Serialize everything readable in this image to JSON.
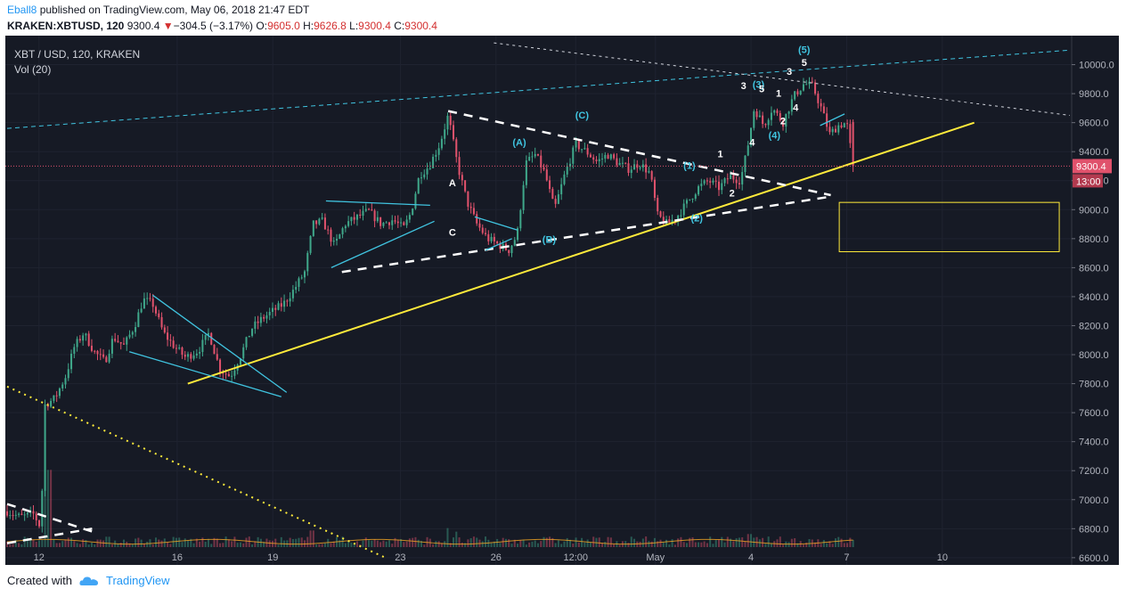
{
  "header": {
    "author": "Eball8",
    "published": "published on TradingView.com, May 06, 2018 21:47 EDT",
    "symbol": "KRAKEN:XBTUSD, 120",
    "last": "9300.4",
    "change_arrow": "▼",
    "change": "−304.5 (−3.17%)",
    "o_label": "O:",
    "o_value": "9605.0",
    "h_label": "H:",
    "h_value": "9626.8",
    "l_label": "L:",
    "l_value": "9300.4",
    "c_label": "C:",
    "c_value": "9300.4"
  },
  "legend": {
    "title": "XBT / USD, 120, KRAKEN",
    "volume": "Vol (20)"
  },
  "footer": {
    "created_with": "Created with",
    "brand": "TradingView"
  },
  "colors": {
    "background": "#161a25",
    "up": "#3fa78a",
    "down": "#e0526c",
    "trend_yellow": "#ffeb3b",
    "wave_cyan": "#40c4e0",
    "white_dash": "#ffffff",
    "price_line": "#e0526c",
    "axis_text": "#b2b5be"
  },
  "chart_data": {
    "type": "candlestick",
    "title": "XBT / USD, 120, KRAKEN",
    "xlabel": "",
    "ylabel": "",
    "ylim": [
      6550,
      10200
    ],
    "y_ticks": [
      "6600.0",
      "6800.0",
      "7000.0",
      "7200.0",
      "7400.0",
      "7600.0",
      "7800.0",
      "8000.0",
      "8200.0",
      "8400.0",
      "8600.0",
      "8800.0",
      "9000.0",
      "9200.0",
      "9400.0",
      "9600.0",
      "9800.0",
      "10000.0"
    ],
    "x_tick_labels": [
      "12",
      "16",
      "19",
      "23",
      "26",
      "12:00",
      "May",
      "4",
      "7",
      "10"
    ],
    "x_ticks": [
      {
        "label": "12",
        "t": 3
      },
      {
        "label": "16",
        "t": 16
      },
      {
        "label": "19",
        "t": 25
      },
      {
        "label": "23",
        "t": 37
      },
      {
        "label": "26",
        "t": 46
      },
      {
        "label": "12:00",
        "t": 53.5
      },
      {
        "label": "May",
        "t": 61
      },
      {
        "label": "4",
        "t": 70
      },
      {
        "label": "7",
        "t": 79
      },
      {
        "label": "10",
        "t": 88
      }
    ],
    "t_range": [
      0,
      100
    ],
    "price_line": {
      "value": 9300.4,
      "label": "9300.4",
      "countdown": "13:00"
    },
    "anchors": [
      [
        0,
        6920
      ],
      [
        1.2,
        6880
      ],
      [
        2.5,
        6900
      ],
      [
        3.2,
        6800
      ],
      [
        3.5,
        7650
      ],
      [
        4.5,
        7700
      ],
      [
        5.5,
        7850
      ],
      [
        6.3,
        8050
      ],
      [
        7.2,
        8150
      ],
      [
        8.2,
        8020
      ],
      [
        9.2,
        7950
      ],
      [
        10,
        8120
      ],
      [
        11,
        8060
      ],
      [
        12,
        8200
      ],
      [
        12.8,
        8380
      ],
      [
        13.7,
        8350
      ],
      [
        14.7,
        8150
      ],
      [
        15.8,
        8050
      ],
      [
        16.8,
        7980
      ],
      [
        18,
        8030
      ],
      [
        19,
        8150
      ],
      [
        20,
        7900
      ],
      [
        21,
        7850
      ],
      [
        22,
        8000
      ],
      [
        23,
        8180
      ],
      [
        24,
        8250
      ],
      [
        25,
        8300
      ],
      [
        26,
        8350
      ],
      [
        27,
        8450
      ],
      [
        28,
        8570
      ],
      [
        28.8,
        8900
      ],
      [
        29.7,
        8920
      ],
      [
        30.8,
        8750
      ],
      [
        31.8,
        8900
      ],
      [
        33,
        8950
      ],
      [
        34,
        8990
      ],
      [
        35.2,
        8900
      ],
      [
        36.3,
        8930
      ],
      [
        37.3,
        8870
      ],
      [
        38,
        8980
      ],
      [
        38.8,
        9240
      ],
      [
        39.7,
        9300
      ],
      [
        40.7,
        9450
      ],
      [
        41.5,
        9650
      ],
      [
        42.4,
        9300
      ],
      [
        43.3,
        9050
      ],
      [
        44.2,
        8900
      ],
      [
        45.2,
        8800
      ],
      [
        46.2,
        8760
      ],
      [
        47.2,
        8720
      ],
      [
        48,
        8830
      ],
      [
        48.8,
        9320
      ],
      [
        49.7,
        9380
      ],
      [
        50.6,
        9250
      ],
      [
        51.5,
        9000
      ],
      [
        52.5,
        9250
      ],
      [
        53.5,
        9450
      ],
      [
        54.5,
        9400
      ],
      [
        55.5,
        9330
      ],
      [
        56.5,
        9380
      ],
      [
        57.5,
        9320
      ],
      [
        58.5,
        9280
      ],
      [
        59.5,
        9320
      ],
      [
        60.5,
        9250
      ],
      [
        61.2,
        8960
      ],
      [
        62.1,
        8900
      ],
      [
        63,
        8950
      ],
      [
        64,
        9050
      ],
      [
        65,
        9150
      ],
      [
        66,
        9200
      ],
      [
        67,
        9150
      ],
      [
        68,
        9230
      ],
      [
        69,
        9200
      ],
      [
        69.6,
        9400
      ],
      [
        70.3,
        9700
      ],
      [
        71.2,
        9580
      ],
      [
        72,
        9700
      ],
      [
        73,
        9600
      ],
      [
        74,
        9780
      ],
      [
        75,
        9870
      ],
      [
        75.8,
        9850
      ],
      [
        76.6,
        9700
      ],
      [
        77.4,
        9520
      ],
      [
        78.2,
        9580
      ],
      [
        79,
        9600
      ],
      [
        79.6,
        9300.4
      ]
    ],
    "volume_ylim": [
      0,
      900
    ],
    "volume_spikes": [
      {
        "t": 3.5,
        "value": 880
      },
      {
        "t": 4.0,
        "value": 650
      },
      {
        "t": 28.7,
        "value": 140
      },
      {
        "t": 41.4,
        "value": 160
      },
      {
        "t": 42.3,
        "value": 130
      },
      {
        "t": 69.8,
        "value": 110
      },
      {
        "t": 79.6,
        "value": 60
      }
    ],
    "drawings": {
      "yellow_support": {
        "from": [
          17,
          7800
        ],
        "to": [
          91,
          9600
        ]
      },
      "yellow_dotted": {
        "from": [
          0,
          7780
        ],
        "to": [
          35.6,
          6600
        ]
      },
      "yellow_box": {
        "t1": 78.3,
        "t2": 99,
        "p1": 9050,
        "p2": 8710
      },
      "cyan_top_dashed": {
        "from": [
          0,
          9560
        ],
        "to": [
          100,
          10100
        ]
      },
      "white_top_dashed": {
        "from": [
          45.8,
          10150
        ],
        "to": [
          100,
          9650
        ]
      },
      "white_upper_dashed": {
        "from": [
          41.5,
          9680
        ],
        "to": [
          77.5,
          9100
        ]
      },
      "white_lower_dashed": {
        "from": [
          31.5,
          8570
        ],
        "to": [
          77.5,
          9090
        ]
      },
      "white_left_dashed": {
        "from": [
          0,
          6970
        ],
        "to": [
          8,
          6780
        ]
      },
      "white_left_dashed2": {
        "from": [
          0,
          6700
        ],
        "to": [
          8,
          6800
        ]
      },
      "cyan_lines": [
        {
          "from": [
            13.7,
            8410
          ],
          "to": [
            26.3,
            7740
          ]
        },
        {
          "from": [
            11.5,
            8020
          ],
          "to": [
            25.8,
            7710
          ]
        },
        {
          "from": [
            30,
            9060
          ],
          "to": [
            39.8,
            9030
          ]
        },
        {
          "from": [
            30.5,
            8600
          ],
          "to": [
            40.2,
            8920
          ]
        },
        {
          "from": [
            44,
            8950
          ],
          "to": [
            48,
            8860
          ]
        },
        {
          "from": [
            45,
            8720
          ],
          "to": [
            47.5,
            8800
          ]
        },
        {
          "from": [
            76.5,
            9580
          ],
          "to": [
            78.8,
            9660
          ]
        }
      ]
    },
    "wave_labels": [
      {
        "text": "A",
        "t": 41.9,
        "p": 9160,
        "color": "white"
      },
      {
        "text": "C",
        "t": 41.9,
        "p": 8820,
        "color": "white"
      },
      {
        "text": "(A)",
        "t": 48.2,
        "p": 9440,
        "color": "cyan"
      },
      {
        "text": "(B)",
        "t": 51.0,
        "p": 8770,
        "color": "cyan"
      },
      {
        "text": "(C)",
        "t": 54.1,
        "p": 9630,
        "color": "cyan"
      },
      {
        "text": "(1)",
        "t": 64.2,
        "p": 9280,
        "color": "cyan"
      },
      {
        "text": "(2)",
        "t": 64.9,
        "p": 8920,
        "color": "cyan"
      },
      {
        "text": "1",
        "t": 67.1,
        "p": 9360,
        "color": "white"
      },
      {
        "text": "2",
        "t": 68.2,
        "p": 9090,
        "color": "white"
      },
      {
        "text": "3",
        "t": 69.3,
        "p": 9830,
        "color": "white"
      },
      {
        "text": "(3)",
        "t": 70.7,
        "p": 9840,
        "color": "cyan"
      },
      {
        "text": "4",
        "t": 70.1,
        "p": 9440,
        "color": "white"
      },
      {
        "text": "5",
        "t": 71.0,
        "p": 9810,
        "color": "white"
      },
      {
        "text": "1",
        "t": 72.6,
        "p": 9780,
        "color": "white"
      },
      {
        "text": "(4)",
        "t": 72.2,
        "p": 9490,
        "color": "cyan"
      },
      {
        "text": "2",
        "t": 73.0,
        "p": 9590,
        "color": "white"
      },
      {
        "text": "4",
        "t": 74.2,
        "p": 9680,
        "color": "white"
      },
      {
        "text": "3",
        "t": 73.6,
        "p": 9930,
        "color": "white"
      },
      {
        "text": "5",
        "t": 75.0,
        "p": 9990,
        "color": "white"
      },
      {
        "text": "(5)",
        "t": 75.0,
        "p": 10080,
        "color": "cyan"
      }
    ]
  }
}
